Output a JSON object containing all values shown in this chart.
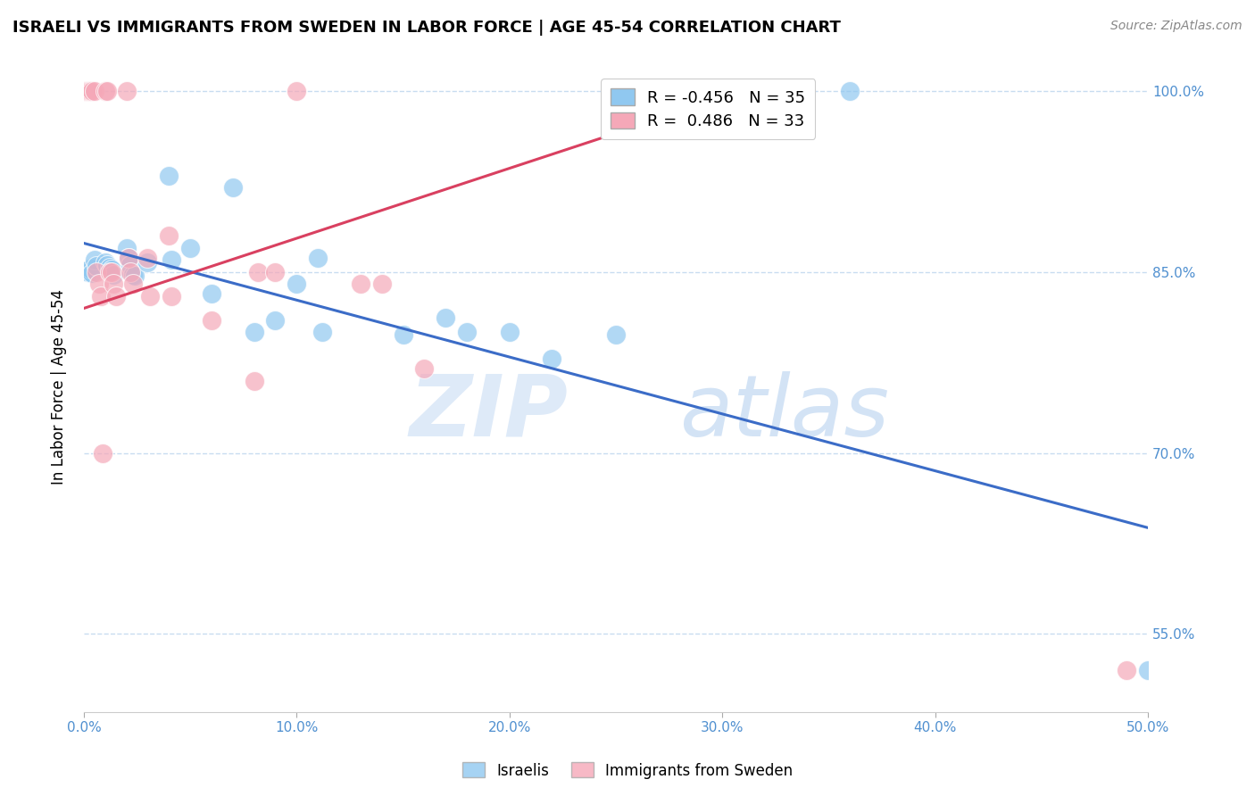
{
  "title": "ISRAELI VS IMMIGRANTS FROM SWEDEN IN LABOR FORCE | AGE 45-54 CORRELATION CHART",
  "source": "Source: ZipAtlas.com",
  "ylabel": "In Labor Force | Age 45-54",
  "xlim": [
    0.0,
    0.5
  ],
  "ylim": [
    0.485,
    1.025
  ],
  "xticks": [
    0.0,
    0.1,
    0.2,
    0.3,
    0.4,
    0.5
  ],
  "yticks": [
    0.55,
    0.7,
    0.85,
    1.0
  ],
  "ytick_labels": [
    "55.0%",
    "70.0%",
    "85.0%",
    "100.0%"
  ],
  "xtick_labels": [
    "0.0%",
    "10.0%",
    "20.0%",
    "30.0%",
    "40.0%",
    "50.0%"
  ],
  "watermark_zip": "ZIP",
  "watermark_atlas": "atlas",
  "legend_blue_R": "-0.456",
  "legend_blue_N": "35",
  "legend_pink_R": " 0.486",
  "legend_pink_N": "33",
  "blue_color": "#90C8F0",
  "pink_color": "#F5A8B8",
  "blue_line_color": "#3B6CC7",
  "pink_line_color": "#D94060",
  "axis_label_color": "#5090D0",
  "grid_color": "#C8DCF0",
  "blue_x": [
    0.001,
    0.002,
    0.003,
    0.004,
    0.005,
    0.006,
    0.01,
    0.011,
    0.012,
    0.013,
    0.014,
    0.02,
    0.021,
    0.022,
    0.023,
    0.024,
    0.03,
    0.04,
    0.041,
    0.05,
    0.06,
    0.07,
    0.08,
    0.09,
    0.1,
    0.11,
    0.112,
    0.15,
    0.17,
    0.18,
    0.2,
    0.22,
    0.25,
    0.36,
    0.5
  ],
  "blue_y": [
    0.851,
    0.85,
    0.853,
    0.849,
    0.86,
    0.855,
    0.858,
    0.856,
    0.854,
    0.852,
    0.848,
    0.87,
    0.862,
    0.856,
    0.848,
    0.847,
    0.858,
    0.93,
    0.86,
    0.87,
    0.832,
    0.92,
    0.8,
    0.81,
    0.84,
    0.862,
    0.8,
    0.798,
    0.812,
    0.8,
    0.8,
    0.778,
    0.798,
    1.0,
    0.52
  ],
  "pink_x": [
    0.001,
    0.002,
    0.003,
    0.004,
    0.005,
    0.006,
    0.007,
    0.008,
    0.009,
    0.01,
    0.011,
    0.012,
    0.013,
    0.014,
    0.015,
    0.02,
    0.021,
    0.022,
    0.023,
    0.03,
    0.031,
    0.04,
    0.041,
    0.06,
    0.08,
    0.082,
    0.09,
    0.1,
    0.13,
    0.14,
    0.16,
    0.31,
    0.49
  ],
  "pink_y": [
    1.0,
    1.0,
    1.0,
    1.0,
    1.0,
    0.85,
    0.84,
    0.83,
    0.7,
    1.0,
    1.0,
    0.85,
    0.85,
    0.84,
    0.83,
    1.0,
    0.862,
    0.85,
    0.84,
    0.862,
    0.83,
    0.88,
    0.83,
    0.81,
    0.76,
    0.85,
    0.85,
    1.0,
    0.84,
    0.84,
    0.77,
    1.0,
    0.52
  ],
  "blue_trend_x": [
    0.0,
    0.5
  ],
  "blue_trend_y": [
    0.874,
    0.638
  ],
  "pink_trend_x": [
    0.0,
    0.31
  ],
  "pink_trend_y": [
    0.82,
    1.0
  ]
}
